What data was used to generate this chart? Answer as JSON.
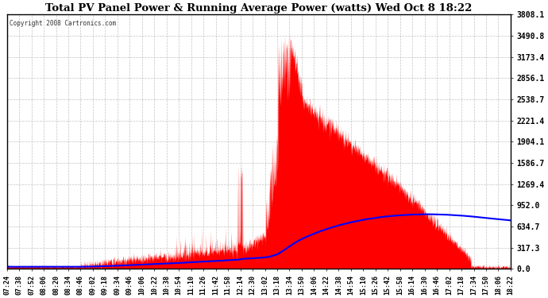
{
  "title": "Total PV Panel Power & Running Average Power (watts) Wed Oct 8 18:22",
  "copyright": "Copyright 2008 Cartronics.com",
  "bg_color": "#ffffff",
  "plot_bg_color": "#ffffff",
  "grid_color": "#aaaaaa",
  "bar_color": "#ff0000",
  "line_color": "#0000ff",
  "y_max": 3808.1,
  "y_min": 0.0,
  "y_ticks": [
    0.0,
    317.3,
    634.7,
    952.0,
    1269.4,
    1586.7,
    1904.1,
    2221.4,
    2538.7,
    2856.1,
    3173.4,
    3490.8,
    3808.1
  ],
  "tick_labels": [
    "07:24",
    "07:38",
    "07:52",
    "08:06",
    "08:20",
    "08:34",
    "08:46",
    "09:02",
    "09:18",
    "09:34",
    "09:46",
    "10:06",
    "10:22",
    "10:38",
    "10:54",
    "11:10",
    "11:26",
    "11:42",
    "11:58",
    "12:14",
    "12:30",
    "13:02",
    "13:18",
    "13:34",
    "13:50",
    "14:06",
    "14:22",
    "14:38",
    "14:54",
    "15:10",
    "15:26",
    "15:42",
    "15:58",
    "16:14",
    "16:30",
    "16:46",
    "17:02",
    "17:18",
    "17:34",
    "17:50",
    "18:06",
    "18:22"
  ]
}
